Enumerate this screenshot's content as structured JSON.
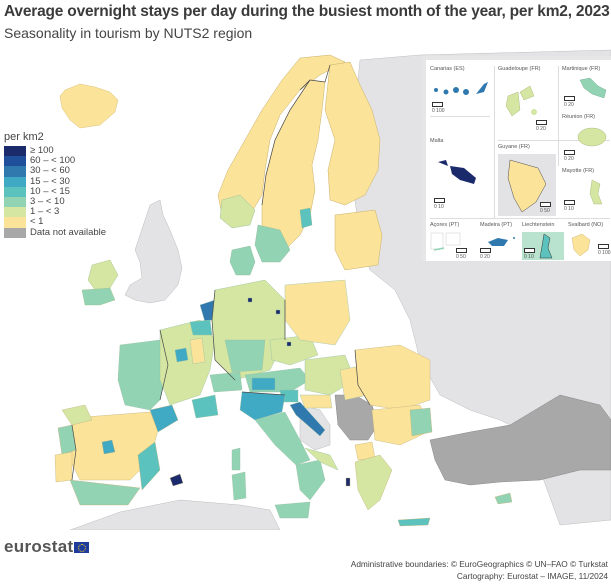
{
  "header": {
    "title": "Average overnight stays per day during the busiest month of the year, per km2, 2023",
    "subtitle": "Seasonality in tourism by NUTS2 region"
  },
  "legend": {
    "title": "per km2",
    "classes": [
      {
        "label": "≥ 100",
        "color": "#1b2a6b"
      },
      {
        "label": "60 – < 100",
        "color": "#1f4f9a"
      },
      {
        "label": "30 – < 60",
        "color": "#2f79ae"
      },
      {
        "label": "15 – < 30",
        "color": "#40a9c4"
      },
      {
        "label": "10 – < 15",
        "color": "#5cc2bd"
      },
      {
        "label": "3 – < 10",
        "color": "#91d3b3"
      },
      {
        "label": "1 – < 3",
        "color": "#d4e6a1"
      },
      {
        "label": "< 1",
        "color": "#fbe39a"
      },
      {
        "label": "Data not available",
        "color": "#a8a8a8"
      }
    ]
  },
  "colors": {
    "non_eu_land": "#e3e3e6",
    "no_data": "#a8a8a8",
    "sea": "#ffffff",
    "border": "#4a4a4a"
  },
  "insets": [
    {
      "name": "Canarias (ES)",
      "scale": "0   100",
      "class": "30 – < 60"
    },
    {
      "name": "Guadeloupe (FR)",
      "scale": "0   20",
      "class": "1 – < 3"
    },
    {
      "name": "Martinique (FR)",
      "scale": "0   20",
      "class": "3 – < 10"
    },
    {
      "name": "Réunion (FR)",
      "scale": "0   20",
      "class": "1 – < 3"
    },
    {
      "name": "Guyane (FR)",
      "scale": "0   50",
      "class": "< 1"
    },
    {
      "name": "Mayotte (FR)",
      "scale": "0   10",
      "class": "1 – < 3"
    },
    {
      "name": "Malta",
      "scale": "0   10",
      "class": "≥ 100"
    },
    {
      "name": "Açores (PT)",
      "scale": "0   50",
      "class": "3 – < 10"
    },
    {
      "name": "Madeira (PT)",
      "scale": "0   20",
      "class": "30 – < 60"
    },
    {
      "name": "Liechtenstein",
      "scale": "0   10",
      "class": "10 – < 15"
    },
    {
      "name": "Svalbard (NO)",
      "scale": "0   100",
      "class": "< 1"
    }
  ],
  "footer": {
    "logo": "eurostat",
    "credit_line1": "Administrative boundaries: © EuroGeographics © UN–FAO © Turkstat",
    "credit_line2": "Cartography: Eurostat – IMAGE, 11/2024"
  }
}
